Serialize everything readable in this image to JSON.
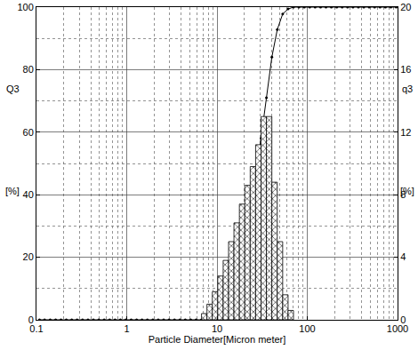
{
  "chart_data": {
    "type": "histogram",
    "xlabel": "Particle Diameter[Micron meter]",
    "ylabel": "Q3",
    "ylabel_unit": "[%]",
    "y2label": "q3",
    "y2label_unit": "[%]",
    "log": "x",
    "grid": true,
    "xlim": [
      0.1,
      1000
    ],
    "xticks": [
      0.1,
      1,
      10,
      100,
      1000
    ],
    "ylim": [
      0,
      100
    ],
    "yticks": [
      0,
      20,
      40,
      60,
      80,
      100
    ],
    "y2lim": [
      0,
      20
    ],
    "y2ticks": [
      0,
      4,
      8,
      12,
      16,
      20
    ],
    "series": [
      {
        "type": "bar",
        "axis": "y2",
        "color": "#000000",
        "marker": "cross-hatch",
        "bins": [
          6.735,
          7.731,
          8.876,
          10.19,
          11.7,
          13.43,
          15.41,
          17.7,
          20.32,
          23.33,
          26.78,
          30.74,
          35.29,
          40.52,
          46.51,
          53.4,
          61.3,
          70.37
        ],
        "values": [
          0.4,
          1.0,
          1.8,
          2.8,
          3.8,
          5.0,
          6.2,
          7.4,
          8.6,
          9.8,
          11.2,
          13.0,
          13.0,
          8.8,
          5.0,
          1.6,
          0.6
        ]
      },
      {
        "type": "line",
        "axis": "y",
        "color": "#000000",
        "marker": "dot",
        "line_style": "solid",
        "x": [
          0.108,
          0.123,
          0.142,
          0.163,
          0.187,
          0.214,
          0.246,
          0.282,
          0.324,
          0.372,
          0.427,
          0.49,
          0.562,
          0.646,
          0.741,
          0.851,
          0.976,
          1.121,
          1.287,
          1.477,
          1.695,
          1.946,
          2.234,
          2.564,
          2.943,
          3.379,
          3.878,
          4.452,
          5.111,
          5.867,
          6.735,
          7.731,
          8.876,
          10.19,
          11.7,
          13.43,
          15.41,
          17.7,
          20.32,
          23.33,
          26.78,
          30.74,
          35.29,
          40.52,
          46.51,
          53.4,
          61.3,
          70.37,
          80.78,
          92.73,
          106.4,
          122.2,
          140.3,
          161.0,
          184.8,
          212.1,
          243.5,
          279.5,
          320.9,
          368.3,
          422.8,
          485.3,
          557.1,
          639.5,
          734.1,
          842.6,
          967.3
        ],
        "values": [
          0,
          0,
          0,
          0,
          0,
          0,
          0,
          0,
          0,
          0,
          0,
          0,
          0,
          0,
          0,
          0,
          0,
          0,
          0,
          0,
          0,
          0,
          0,
          0,
          0,
          0,
          0,
          0,
          0,
          0,
          0,
          0.4,
          1.4,
          3.2,
          6.0,
          9.8,
          14.8,
          21.0,
          28.4,
          37.0,
          46.8,
          58.0,
          71.0,
          84.0,
          92.8,
          97.8,
          99.4,
          100,
          100,
          100,
          100,
          100,
          100,
          100,
          100,
          100,
          100,
          100,
          100,
          100,
          100,
          100,
          100,
          100,
          100,
          100,
          100
        ]
      }
    ]
  }
}
